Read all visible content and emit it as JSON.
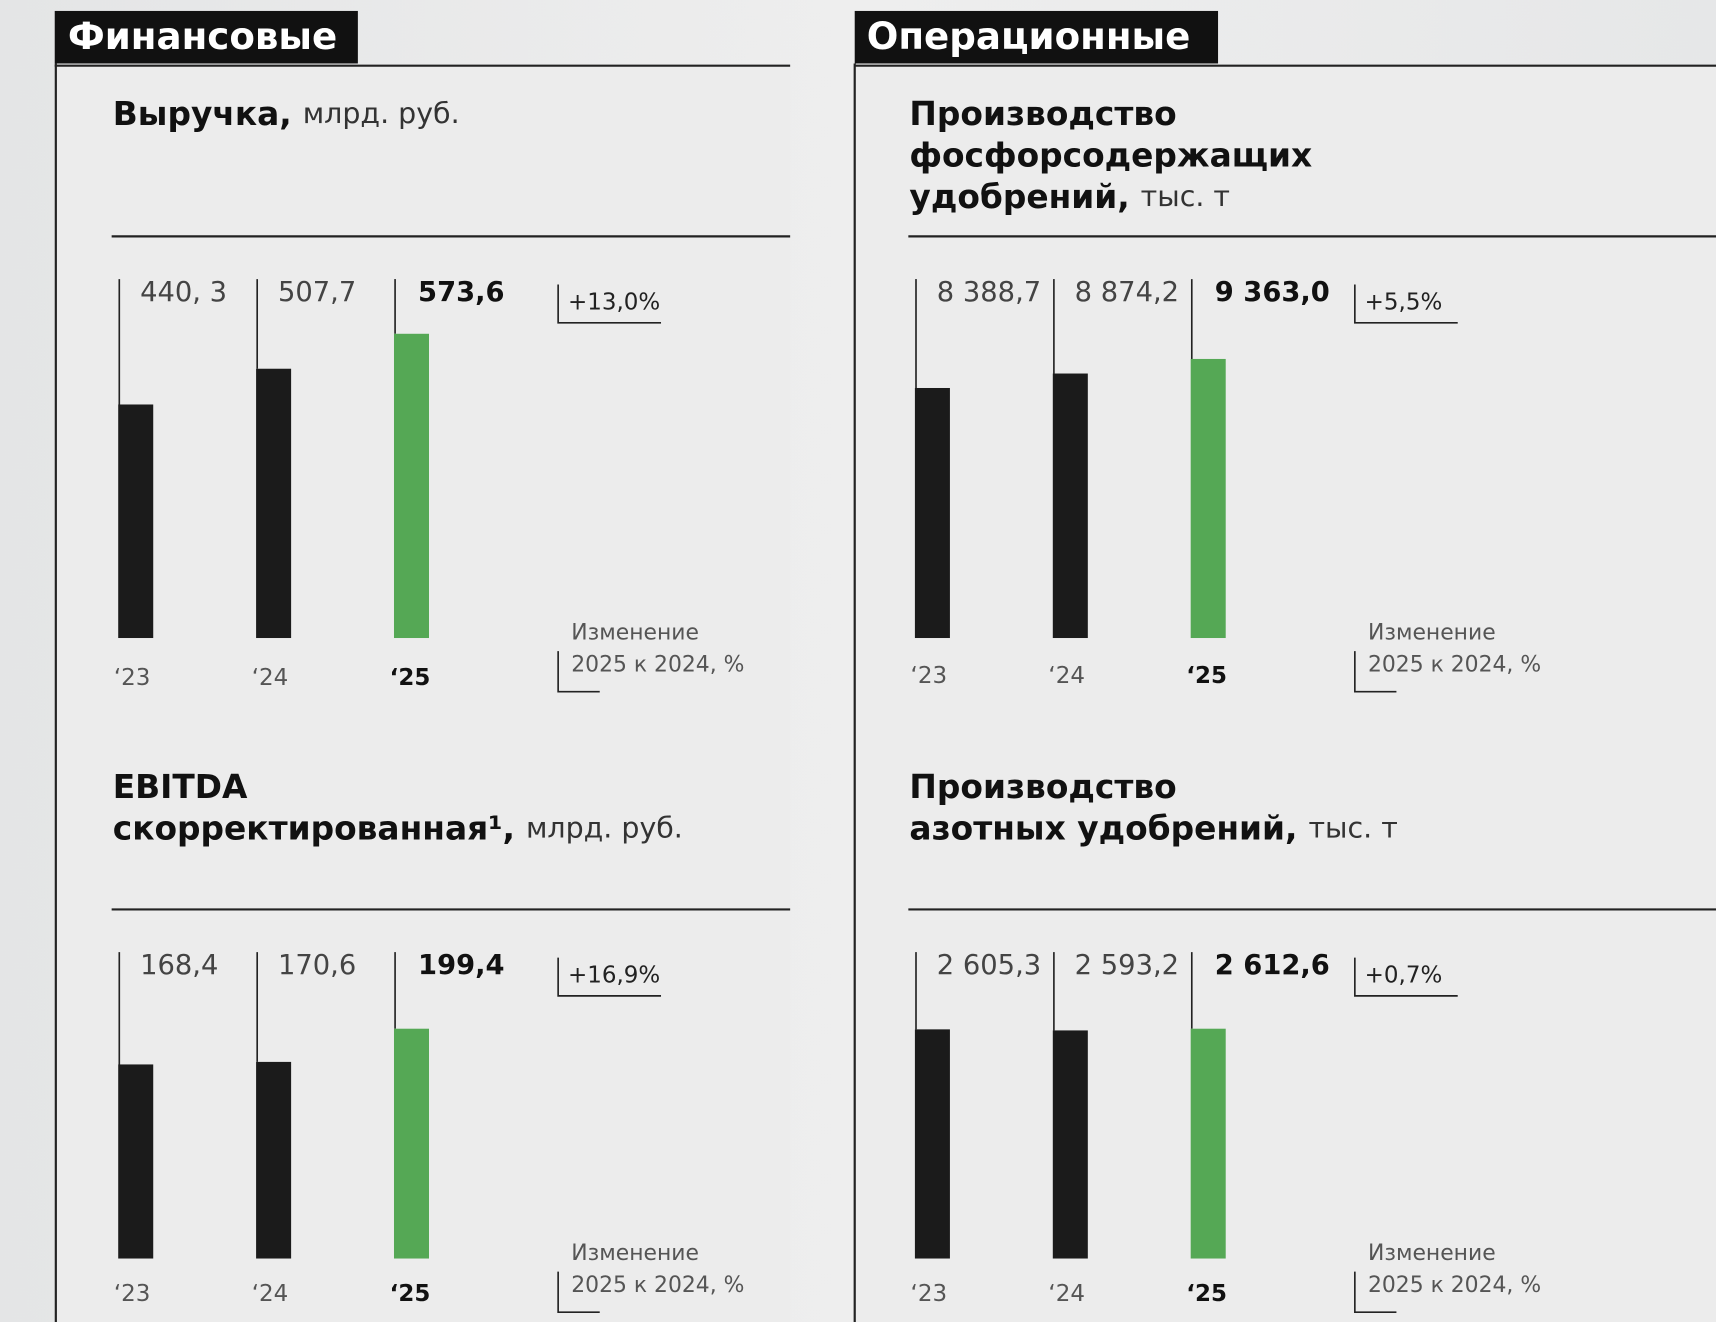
{
  "tabs": [
    "Финансовые",
    "Операционные"
  ],
  "chart_data": [
    {
      "type": "bar",
      "title_lines": [
        "Выручка,"
      ],
      "unit": "млрд. руб.",
      "categories": [
        "‘23",
        "‘24",
        "‘25"
      ],
      "values": [
        440.3,
        507.7,
        573.6
      ],
      "value_labels": [
        "440, 3",
        "507,7",
        "573,6"
      ],
      "colors": [
        "#1b1b1b",
        "#1b1b1b",
        "#55a855"
      ],
      "change": "+13,0%",
      "change_note": [
        "Изменение",
        "2025 к 2024, %"
      ]
    },
    {
      "type": "bar",
      "title_lines": [
        "EBITDA",
        "скорректированная¹,"
      ],
      "unit": "млрд. руб.",
      "categories": [
        "‘23",
        "‘24",
        "‘25"
      ],
      "values": [
        168.4,
        170.6,
        199.4
      ],
      "value_labels": [
        "168,4",
        "170,6",
        "199,4"
      ],
      "colors": [
        "#1b1b1b",
        "#1b1b1b",
        "#55a855"
      ],
      "change": "+16,9%",
      "change_note": [
        "Изменение",
        "2025 к 2024, %"
      ]
    },
    {
      "type": "bar",
      "title_lines": [
        "Производство",
        "фосфорсодержащих",
        "удобрений,"
      ],
      "unit": "тыс. т",
      "categories": [
        "‘23",
        "‘24",
        "‘25"
      ],
      "values": [
        8388.7,
        8874.2,
        9363.0
      ],
      "value_labels": [
        "8 388,7",
        "8 874,2",
        "9 363,0"
      ],
      "colors": [
        "#1b1b1b",
        "#1b1b1b",
        "#55a855"
      ],
      "change": "+5,5%",
      "change_note": [
        "Изменение",
        "2025 к 2024, %"
      ]
    },
    {
      "type": "bar",
      "title_lines": [
        "Производство",
        "азотных удобрений,"
      ],
      "unit": "тыс. т",
      "categories": [
        "‘23",
        "‘24",
        "‘25"
      ],
      "values": [
        2605.3,
        2593.2,
        2612.6
      ],
      "value_labels": [
        "2 605,3",
        "2 593,2",
        "2 612,6"
      ],
      "colors": [
        "#1b1b1b",
        "#1b1b1b",
        "#55a855"
      ],
      "change": "+0,7%",
      "change_note": [
        "Изменение",
        "2025 к 2024, %"
      ]
    }
  ]
}
